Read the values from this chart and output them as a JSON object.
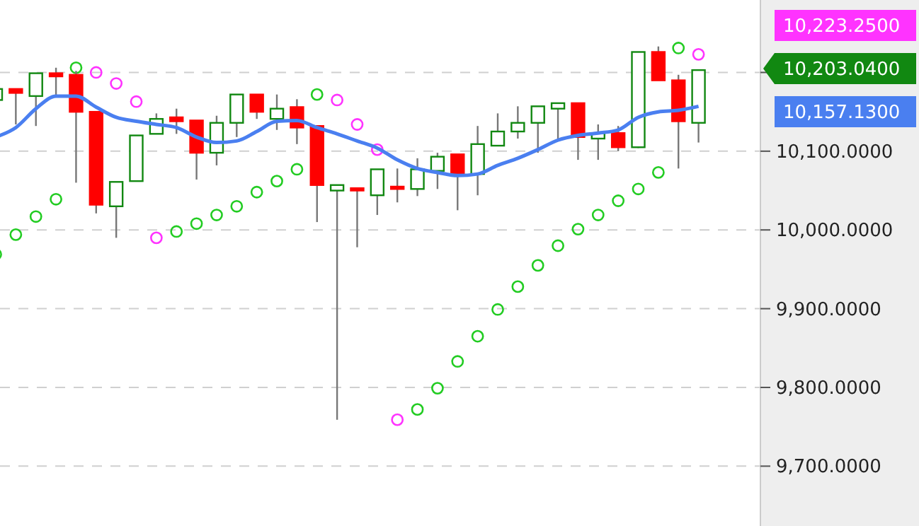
{
  "chart_data": {
    "type": "candlestick",
    "categories": [
      null,
      null,
      null,
      null,
      null,
      null,
      null,
      null,
      null,
      null,
      null,
      null,
      null,
      null,
      null,
      null,
      null,
      null,
      null,
      null,
      null,
      null,
      null,
      null,
      null,
      null,
      null,
      null,
      null,
      null,
      null,
      null,
      null,
      null,
      null,
      null
    ],
    "ohlc": [
      [
        10165,
        10180,
        10165,
        10179
      ],
      [
        10179,
        10179,
        10134,
        10174
      ],
      [
        10170,
        10199,
        10132,
        10199
      ],
      [
        10199,
        10206,
        10170,
        10195
      ],
      [
        10197,
        10202,
        10060,
        10150
      ],
      [
        10150,
        10150,
        10021,
        10032
      ],
      [
        10030,
        10061,
        9990,
        10061
      ],
      [
        10062,
        10120,
        10062,
        10120
      ],
      [
        10122,
        10148,
        10122,
        10141
      ],
      [
        10143,
        10154,
        10122,
        10138
      ],
      [
        10139,
        10139,
        10064,
        10098
      ],
      [
        10098,
        10145,
        10082,
        10136
      ],
      [
        10136,
        10172,
        10118,
        10172
      ],
      [
        10172,
        10172,
        10141,
        10150
      ],
      [
        10141,
        10172,
        10127,
        10154
      ],
      [
        10156,
        10166,
        10109,
        10130
      ],
      [
        10132,
        10132,
        10010,
        10057
      ],
      [
        10050,
        10057,
        9759,
        10057
      ],
      [
        10053,
        10053,
        9978,
        10050
      ],
      [
        10044,
        10077,
        10019,
        10077
      ],
      [
        10055,
        10078,
        10035,
        10052
      ],
      [
        10052,
        10091,
        10043,
        10077
      ],
      [
        10075,
        10098,
        10052,
        10093
      ],
      [
        10096,
        10096,
        10025,
        10071
      ],
      [
        10071,
        10132,
        10044,
        10109
      ],
      [
        10107,
        10148,
        10107,
        10125
      ],
      [
        10125,
        10157,
        10116,
        10136
      ],
      [
        10136,
        10157,
        10098,
        10157
      ],
      [
        10154,
        10161,
        10116,
        10161
      ],
      [
        10161,
        10161,
        10089,
        10118
      ],
      [
        10116,
        10134,
        10089,
        10123
      ],
      [
        10123,
        10132,
        10100,
        10105
      ],
      [
        10105,
        10226,
        10104,
        10226
      ],
      [
        10226,
        10233,
        10190,
        10190
      ],
      [
        10190,
        10197,
        10078,
        10138
      ],
      [
        10136,
        10204,
        10111,
        10203
      ]
    ],
    "colors": [
      "#118811",
      "#ff0000",
      "#118811",
      "#ff0000",
      "#ff0000",
      "#ff0000",
      "#118811",
      "#118811",
      "#118811",
      "#ff0000",
      "#ff0000",
      "#118811",
      "#118811",
      "#ff0000",
      "#118811",
      "#ff0000",
      "#ff0000",
      "#118811",
      "#ff0000",
      "#118811",
      "#ff0000",
      "#118811",
      "#118811",
      "#ff0000",
      "#118811",
      "#118811",
      "#118811",
      "#118811",
      "#118811",
      "#ff0000",
      "#118811",
      "#ff0000",
      "#118811",
      "#ff0000",
      "#ff0000",
      "#118811"
    ],
    "series": [
      {
        "type": "line",
        "color": "#4a7ff0",
        "values": [
          10118,
          10130,
          10154,
          10170,
          10170,
          10156,
          10143,
          10138,
          10134,
          10130,
          10118,
          10111,
          10113,
          10125,
          10138,
          10139,
          10130,
          10122,
          10113,
          10104,
          10089,
          10078,
          10073,
          10069,
          10071,
          10082,
          10091,
          10102,
          10114,
          10120,
          10123,
          10127,
          10143,
          10150,
          10152,
          10157
        ]
      },
      {
        "type": "scatter",
        "color": "#22cc22",
        "marker": "circle",
        "values": [
          9969,
          9994,
          10017,
          10039,
          10206,
          null,
          null,
          null,
          null,
          9998,
          10008,
          10019,
          10030,
          10048,
          10062,
          10077,
          10172,
          null,
          null,
          null,
          null,
          9772,
          9799,
          9833,
          9865,
          9899,
          9928,
          9955,
          9980,
          10001,
          10019,
          10037,
          10052,
          10073,
          10231,
          null
        ]
      },
      {
        "type": "scatter",
        "color": "#ff33ff",
        "marker": "circle",
        "values": [
          null,
          null,
          null,
          null,
          null,
          10200,
          10186,
          10163,
          9990,
          null,
          null,
          null,
          null,
          null,
          null,
          null,
          null,
          10165,
          10134,
          10102,
          9759,
          null,
          null,
          null,
          null,
          null,
          null,
          null,
          null,
          null,
          null,
          null,
          null,
          null,
          null,
          10223
        ]
      }
    ],
    "ylim": [
      9624,
      10292
    ],
    "yticks": [
      {
        "value": 9700,
        "label": "9,700.0000"
      },
      {
        "value": 9800,
        "label": "9,800.0000"
      },
      {
        "value": 9900,
        "label": "9,900.0000"
      },
      {
        "value": 10000,
        "label": "10,000.0000"
      },
      {
        "value": 10100,
        "label": "10,100.0000"
      },
      {
        "value": 10200,
        "label": null
      }
    ],
    "grid": "y",
    "annotations": [
      "10,223.2500",
      "10,203.0400",
      "10,157.1300"
    ]
  }
}
